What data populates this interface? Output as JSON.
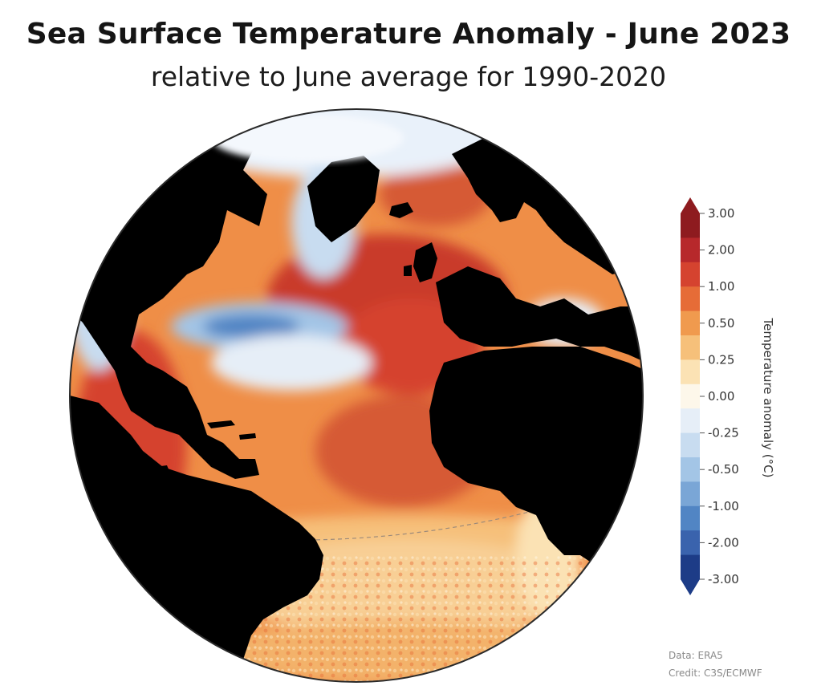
{
  "title": "Sea Surface Temperature Anomaly - June 2023",
  "subtitle": "relative to June average for 1990-2020",
  "legend": {
    "title": "Temperature anomaly (°C)",
    "ticks": [
      "3.00",
      "2.00",
      "1.00",
      "0.50",
      "0.25",
      "0.00",
      "-0.25",
      "-0.50",
      "-1.00",
      "-2.00",
      "-3.00"
    ],
    "colors": [
      "#8e1b1f",
      "#b7282b",
      "#d5432f",
      "#e66c37",
      "#f09a4e",
      "#f6c07a",
      "#fbe2b4",
      "#fdf7ea",
      "#e6eef7",
      "#c8dcf0",
      "#a3c5e6",
      "#7aa6d6",
      "#5185c4",
      "#3a63ad",
      "#1d3c87"
    ],
    "max_arrow_color": "#8e1b1f",
    "min_arrow_color": "#1d3c87"
  },
  "credits": {
    "data": "Data: ERA5",
    "credit": "Credit: C3S/ECMWF"
  },
  "map": {
    "land_color": "#000000",
    "ocean_base_color": "#ef8e47"
  }
}
